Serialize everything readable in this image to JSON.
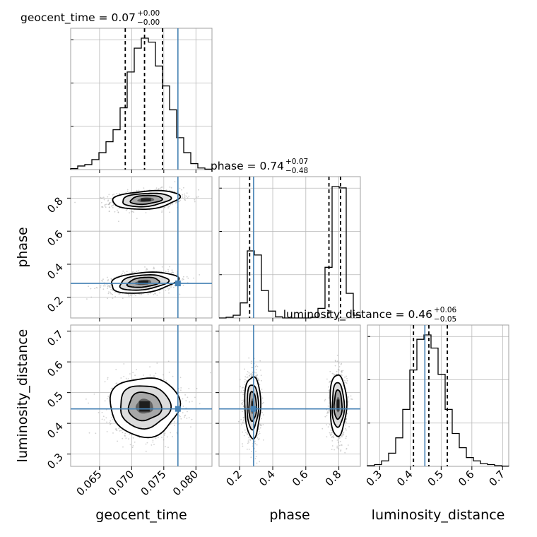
{
  "chart_data": {
    "type": "corner",
    "parameters": [
      "geocent_time",
      "phase",
      "luminosity_distance"
    ],
    "truths": {
      "geocent_time": 0.0772,
      "phase": 0.284,
      "luminosity_distance": 0.447
    },
    "colors": {
      "truth": "#4682b4",
      "hist": "#000000",
      "points": "#9a9a9a"
    },
    "titles": [
      {
        "param": "geocent_time",
        "label": "geocent_time = 0.07",
        "plus": "+0.00",
        "minus": "−0.00"
      },
      {
        "param": "phase",
        "label": "phase = 0.74",
        "plus": "+0.07",
        "minus": "−0.48"
      },
      {
        "param": "luminosity_distance",
        "label": "luminosity_distance = 0.46",
        "plus": "+0.06",
        "minus": "−0.05"
      }
    ],
    "axes": {
      "geocent_time": {
        "range": [
          0.0605,
          0.0825
        ],
        "ticks": [
          0.065,
          0.07,
          0.075,
          0.08
        ],
        "tick_labels": [
          "0.065",
          "0.070",
          "0.075",
          "0.080"
        ]
      },
      "phase": {
        "range": [
          0.075,
          0.93
        ],
        "ticks": [
          0.2,
          0.4,
          0.6,
          0.8
        ],
        "tick_labels": [
          "0.2",
          "0.4",
          "0.6",
          "0.8"
        ]
      },
      "luminosity_distance": {
        "range": [
          0.26,
          0.72
        ],
        "ticks": [
          0.3,
          0.4,
          0.5,
          0.6,
          0.7
        ],
        "tick_labels": [
          "0.3",
          "0.4",
          "0.5",
          "0.6",
          "0.7"
        ]
      }
    },
    "histograms": {
      "geocent_time": {
        "bin_edges": [
          0.0605,
          0.0616,
          0.0627,
          0.0638,
          0.0649,
          0.066,
          0.0671,
          0.0682,
          0.0693,
          0.0704,
          0.0715,
          0.0726,
          0.0737,
          0.0748,
          0.0759,
          0.077,
          0.0781,
          0.0792,
          0.0803,
          0.0814,
          0.0825
        ],
        "heights": [
          0.005,
          0.018,
          0.025,
          0.05,
          0.085,
          0.14,
          0.2,
          0.31,
          0.49,
          0.61,
          0.66,
          0.64,
          0.52,
          0.42,
          0.3,
          0.16,
          0.085,
          0.03,
          0.008,
          0.002
        ],
        "quantiles": [
          0.069,
          0.072,
          0.0748
        ]
      },
      "phase": {
        "bin_edges": [
          0.075,
          0.1177,
          0.1605,
          0.2032,
          0.246,
          0.2887,
          0.3315,
          0.3742,
          0.417,
          0.4597,
          0.5025,
          0.5452,
          0.588,
          0.6307,
          0.6735,
          0.7162,
          0.759,
          0.8017,
          0.8445,
          0.8872,
          0.93
        ],
        "heights": [
          0,
          0.005,
          0.02,
          0.11,
          0.49,
          0.46,
          0.2,
          0.05,
          0.008,
          0,
          0,
          0,
          0,
          0.005,
          0.07,
          0.37,
          0.96,
          0.95,
          0.18,
          0.02
        ],
        "quantiles": [
          0.26,
          0.74,
          0.81
        ]
      },
      "luminosity_distance": {
        "bin_edges": [
          0.26,
          0.283,
          0.306,
          0.329,
          0.352,
          0.375,
          0.398,
          0.421,
          0.444,
          0.467,
          0.49,
          0.513,
          0.536,
          0.559,
          0.582,
          0.605,
          0.628,
          0.651,
          0.674,
          0.697,
          0.72
        ],
        "heights": [
          0.003,
          0.008,
          0.025,
          0.06,
          0.13,
          0.26,
          0.44,
          0.58,
          0.6,
          0.54,
          0.42,
          0.26,
          0.15,
          0.085,
          0.04,
          0.025,
          0.012,
          0.008,
          0.003,
          0.001
        ],
        "quantiles": [
          0.41,
          0.46,
          0.52
        ]
      }
    },
    "density_blobs": [
      {
        "x": "geocent_time",
        "y": "phase",
        "modes": [
          {
            "cx": 0.0722,
            "cy": 0.79,
            "sx": 0.0026,
            "sy": 0.028,
            "rho": 0.25
          },
          {
            "cx": 0.0718,
            "cy": 0.29,
            "sx": 0.0026,
            "sy": 0.032,
            "rho": 0.3
          }
        ]
      },
      {
        "x": "geocent_time",
        "y": "luminosity_distance",
        "modes": [
          {
            "cx": 0.072,
            "cy": 0.455,
            "sx": 0.0027,
            "sy": 0.048,
            "rho": 0.0
          }
        ]
      },
      {
        "x": "phase",
        "y": "luminosity_distance",
        "modes": [
          {
            "cx": 0.278,
            "cy": 0.455,
            "sx": 0.024,
            "sy": 0.05,
            "rho": 0.0
          },
          {
            "cx": 0.795,
            "cy": 0.46,
            "sx": 0.025,
            "sy": 0.05,
            "rho": 0.0
          }
        ]
      }
    ]
  }
}
